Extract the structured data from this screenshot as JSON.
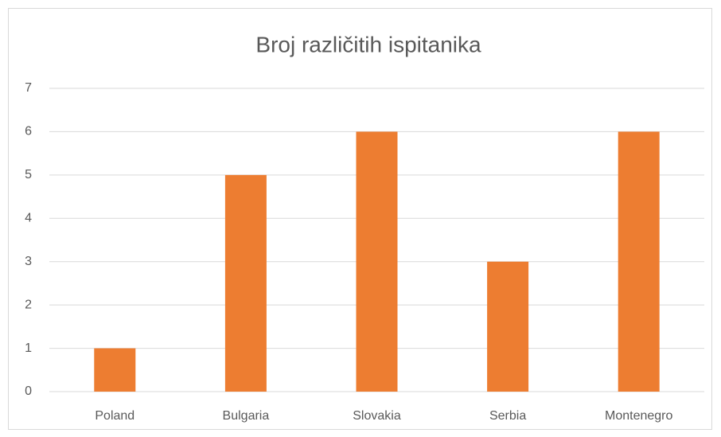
{
  "chart_data": {
    "type": "bar",
    "title": "Broj različitih ispitanika",
    "categories": [
      "Poland",
      "Bulgaria",
      "Slovakia",
      "Serbia",
      "Montenegro"
    ],
    "values": [
      1,
      5,
      6,
      3,
      6
    ],
    "color": "#ed7d31",
    "ylim": [
      0,
      7
    ],
    "yticks": [
      0,
      1,
      2,
      3,
      4,
      5,
      6,
      7
    ],
    "grid": true
  }
}
